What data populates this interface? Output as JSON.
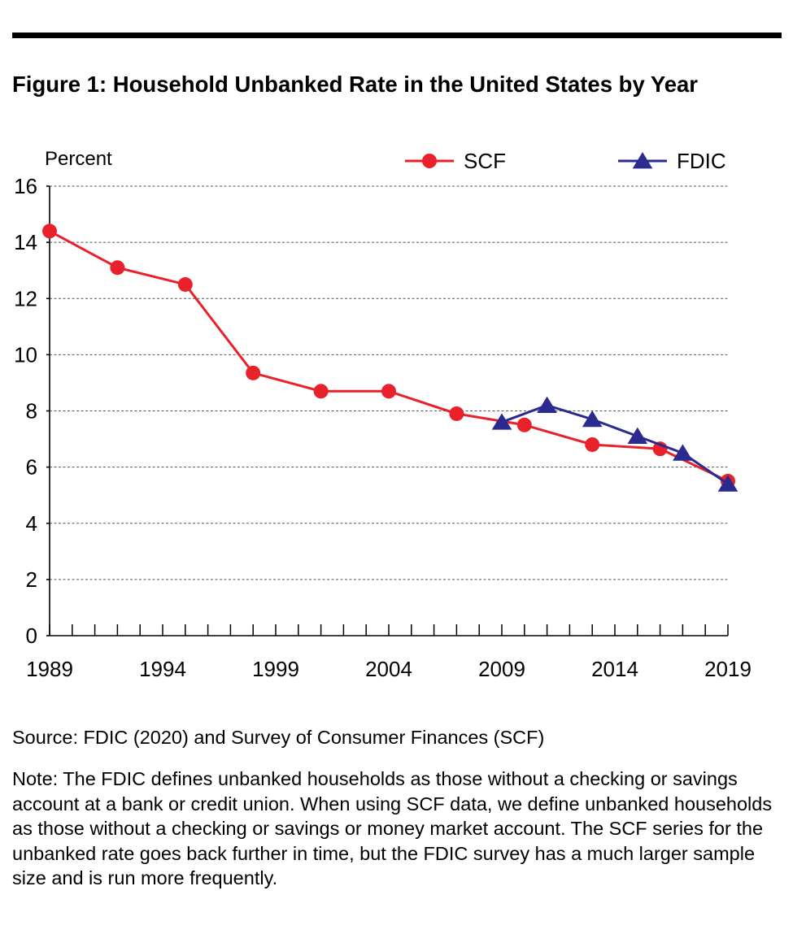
{
  "figure": {
    "title": "Figure 1: Household Unbanked Rate in the United States by Year",
    "source": "Source: FDIC (2020) and Survey of Consumer Finances (SCF)",
    "note": "Note: The FDIC defines unbanked households as those without a checking or savings account at a bank or credit union. When using SCF data, we define unbanked households as those without a checking or savings or money market account. The SCF series for the unbanked rate goes back further in time, but the FDIC survey has a much larger sample size and is run more frequently."
  },
  "chart_data": {
    "type": "line",
    "ylabel": "Percent",
    "xlabel": "",
    "xlim": [
      1989,
      2019
    ],
    "ylim": [
      0,
      16
    ],
    "x_tick_labels": [
      "1989",
      "1994",
      "1999",
      "2004",
      "2009",
      "2014",
      "2019"
    ],
    "y_tick_labels": [
      "0",
      "2",
      "4",
      "6",
      "8",
      "10",
      "12",
      "14",
      "16"
    ],
    "grid": "horizontal dashed",
    "legend_position": "top-right",
    "series": [
      {
        "name": "SCF",
        "color": "#e8212b",
        "marker": "circle",
        "x": [
          1989,
          1992,
          1995,
          1998,
          2001,
          2004,
          2007,
          2010,
          2013,
          2016,
          2019
        ],
        "y": [
          14.4,
          13.1,
          12.5,
          9.35,
          8.7,
          8.7,
          7.9,
          7.5,
          6.8,
          6.65,
          5.5
        ]
      },
      {
        "name": "FDIC",
        "color": "#2b2a8e",
        "marker": "triangle",
        "x": [
          2009,
          2011,
          2013,
          2015,
          2017,
          2019
        ],
        "y": [
          7.6,
          8.2,
          7.7,
          7.1,
          6.5,
          5.4
        ]
      }
    ]
  }
}
